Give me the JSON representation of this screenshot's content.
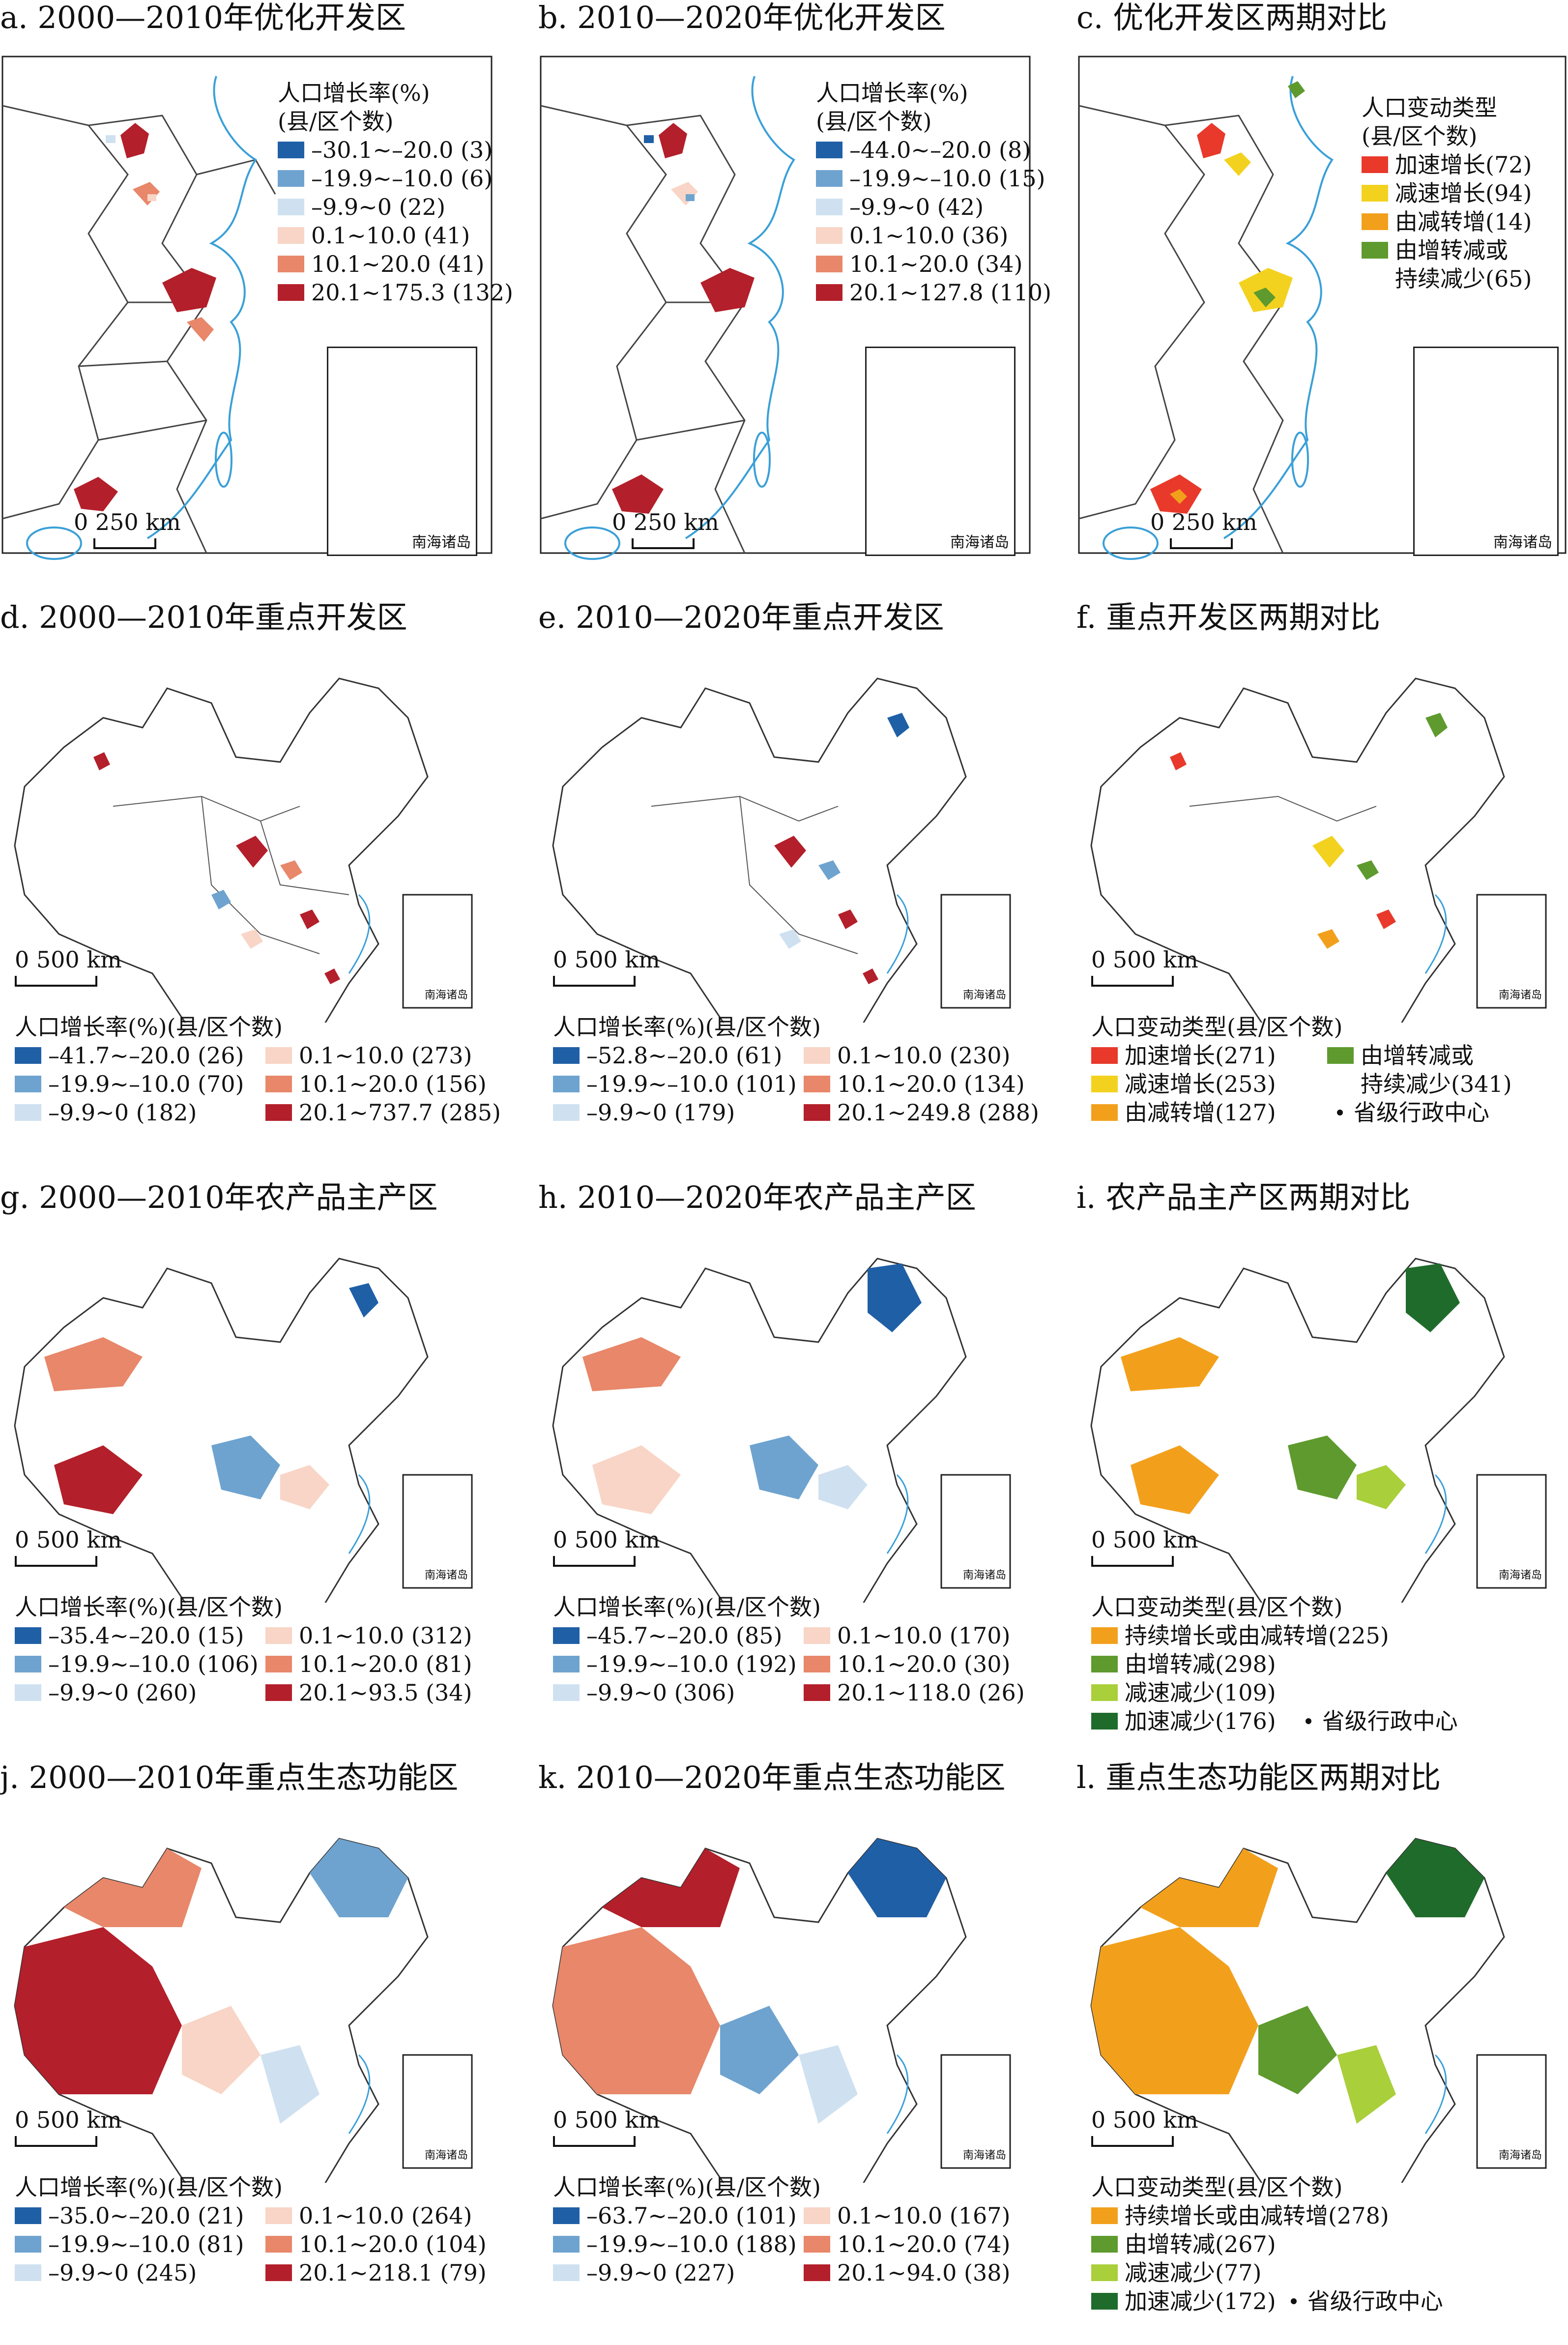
{
  "colors": {
    "rate": [
      "#1f5fa6",
      "#6ea3cf",
      "#cfe1f0",
      "#f8d5c6",
      "#e8876a",
      "#b31f2a"
    ],
    "accel_growth": "#e8392b",
    "decel_growth": "#f3d21f",
    "orange": "#f2a01c",
    "green_mid": "#5e9a2e",
    "green_light": "#a9cf3a",
    "green_dark": "#1f6b2b",
    "coast": "#3aa0d8",
    "boundary": "#333333"
  },
  "common": {
    "inset_label": "南海诸岛",
    "scale_250": "0    250 km",
    "scale_500": "0    500 km",
    "capital_label": "省级行政中心"
  },
  "panels": [
    {
      "title": "a. 2000—2010年优化开发区",
      "legend_title": "人口增长率(%)\n(县/区个数)",
      "items": [
        "–30.1~–20.0 (3)",
        "–19.9~–10.0 (6)",
        "–9.9~0 (22)",
        "0.1~10.0 (41)",
        "10.1~20.0 (41)",
        "20.1~175.3 (132)"
      ]
    },
    {
      "title": "b. 2010—2020年优化开发区",
      "legend_title": "人口增长率(%)\n(县/区个数)",
      "items": [
        "–44.0~–20.0 (8)",
        "–19.9~–10.0 (15)",
        "–9.9~0 (42)",
        "0.1~10.0 (36)",
        "10.1~20.0 (34)",
        "20.1~127.8 (110)"
      ]
    },
    {
      "title": "c. 优化开发区两期对比",
      "legend_title": "人口变动类型\n(县/区个数)",
      "items": [
        "加速增长(72)",
        "减速增长(94)",
        "由减转增(14)",
        "由增转减或\n持续减少(65)"
      ]
    },
    {
      "title": "d. 2000—2010年重点开发区",
      "legend_title": "人口增长率(%)(县/区个数)",
      "items": [
        "–41.7~–20.0 (26)",
        "–19.9~–10.0 (70)",
        "–9.9~0 (182)",
        "0.1~10.0 (273)",
        "10.1~20.0 (156)",
        "20.1~737.7 (285)"
      ]
    },
    {
      "title": "e. 2010—2020年重点开发区",
      "legend_title": "人口增长率(%)(县/区个数)",
      "items": [
        "–52.8~–20.0 (61)",
        "–19.9~–10.0 (101)",
        "–9.9~0 (179)",
        "0.1~10.0 (230)",
        "10.1~20.0 (134)",
        "20.1~249.8 (288)"
      ]
    },
    {
      "title": "f. 重点开发区两期对比",
      "legend_title": "人口变动类型(县/区个数)",
      "items": [
        "加速增长(271)",
        "减速增长(253)",
        "由减转增(127)",
        "由增转减或\n持续减少(341)"
      ]
    },
    {
      "title": "g. 2000—2010年农产品主产区",
      "legend_title": "人口增长率(%)(县/区个数)",
      "items": [
        "–35.4~–20.0 (15)",
        "–19.9~–10.0 (106)",
        "–9.9~0 (260)",
        "0.1~10.0 (312)",
        "10.1~20.0 (81)",
        "20.1~93.5 (34)"
      ]
    },
    {
      "title": "h. 2010—2020年农产品主产区",
      "legend_title": "人口增长率(%)(县/区个数)",
      "items": [
        "–45.7~–20.0 (85)",
        "–19.9~–10.0 (192)",
        "–9.9~0 (306)",
        "0.1~10.0 (170)",
        "10.1~20.0 (30)",
        "20.1~118.0 (26)"
      ]
    },
    {
      "title": "i. 农产品主产区两期对比",
      "legend_title": "人口变动类型(县/区个数)",
      "items": [
        "持续增长或由减转增(225)",
        "由增转减(298)",
        "减速减少(109)",
        "加速减少(176)"
      ]
    },
    {
      "title": "j. 2000—2010年重点生态功能区",
      "legend_title": "人口增长率(%)(县/区个数)",
      "items": [
        "–35.0~–20.0 (21)",
        "–19.9~–10.0 (81)",
        "–9.9~0 (245)",
        "0.1~10.0 (264)",
        "10.1~20.0 (104)",
        "20.1~218.1 (79)"
      ]
    },
    {
      "title": "k. 2010—2020年重点生态功能区",
      "legend_title": "人口增长率(%)(县/区个数)",
      "items": [
        "–63.7~–20.0 (101)",
        "–19.9~–10.0 (188)",
        "–9.9~0 (227)",
        "0.1~10.0 (167)",
        "10.1~20.0 (74)",
        "20.1~94.0 (38)"
      ]
    },
    {
      "title": "l. 重点生态功能区两期对比",
      "legend_title": "人口变动类型(县/区个数)",
      "items": [
        "持续增长或由减转增(278)",
        "由增转减(267)",
        "减速减少(77)",
        "加速减少(172)"
      ]
    }
  ]
}
